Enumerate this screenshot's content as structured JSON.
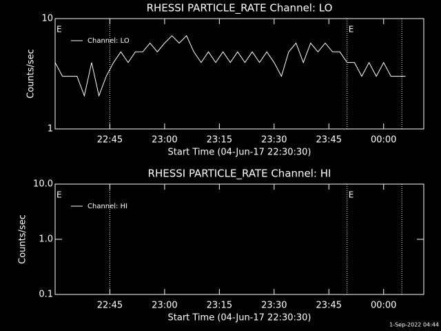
{
  "chart_data": [
    {
      "type": "line",
      "title": "RHESSI PARTICLE_RATE Channel: LO",
      "ylabel": "Counts/sec",
      "xlabel": "Start Time (04-Jun-17 22:30:30)",
      "log_y": true,
      "ylim": [
        1,
        10
      ],
      "yticks": [
        1,
        10
      ],
      "xlim": [
        "22:30",
        "00:11"
      ],
      "xticks": [
        "22:45",
        "23:00",
        "23:15",
        "23:30",
        "23:45",
        "00:00"
      ],
      "vlines": [
        "22:45",
        "23:50",
        "00:05"
      ],
      "annotations": [
        {
          "x": "22:30",
          "label": "E"
        },
        {
          "x": "23:50",
          "label": "E"
        }
      ],
      "x": [
        "22:30",
        "22:32",
        "22:34",
        "22:36",
        "22:38",
        "22:40",
        "22:42",
        "22:44",
        "22:46",
        "22:48",
        "22:50",
        "22:52",
        "22:54",
        "22:56",
        "22:58",
        "23:00",
        "23:02",
        "23:04",
        "23:06",
        "23:08",
        "23:10",
        "23:12",
        "23:14",
        "23:16",
        "23:18",
        "23:20",
        "23:22",
        "23:24",
        "23:26",
        "23:28",
        "23:30",
        "23:32",
        "23:34",
        "23:36",
        "23:38",
        "23:40",
        "23:42",
        "23:44",
        "23:46",
        "23:48",
        "23:50",
        "23:52",
        "23:54",
        "23:56",
        "23:58",
        "00:00",
        "00:02",
        "00:04",
        "00:06"
      ],
      "series": [
        {
          "name": "Channel: LO",
          "color": "#ffffff",
          "values": [
            4,
            3,
            3,
            3,
            2,
            4,
            2,
            3,
            4,
            5,
            4,
            5,
            5,
            6,
            5,
            6,
            7,
            6,
            7,
            5,
            4,
            5,
            4,
            5,
            4,
            5,
            4,
            5,
            4,
            5,
            4,
            3,
            5,
            6,
            4,
            6,
            5,
            6,
            5,
            5,
            4,
            4,
            3,
            4,
            3,
            4,
            3,
            3,
            3
          ]
        }
      ]
    },
    {
      "type": "line",
      "title": "RHESSI PARTICLE_RATE Channel: HI",
      "ylabel": "Counts/sec",
      "xlabel": "Start Time (04-Jun-17 22:30:30)",
      "log_y": true,
      "ylim": [
        0.1,
        10
      ],
      "yticks": [
        {
          "value": 0.1,
          "label": "0.1"
        },
        {
          "value": 1,
          "label": "1.0"
        },
        {
          "value": 10,
          "label": "10.0"
        }
      ],
      "xlim": [
        "22:30",
        "00:11"
      ],
      "xticks": [
        "22:45",
        "23:00",
        "23:15",
        "23:30",
        "23:45",
        "00:00"
      ],
      "vlines": [
        "22:45",
        "23:50",
        "00:05"
      ],
      "annotations": [
        {
          "x": "22:30",
          "label": "E"
        },
        {
          "x": "23:50",
          "label": "E"
        }
      ],
      "x": [],
      "series": [
        {
          "name": "Channel: HI",
          "color": "#ffffff",
          "values": []
        }
      ]
    }
  ],
  "footer": "1-Sep-2022 04:44"
}
